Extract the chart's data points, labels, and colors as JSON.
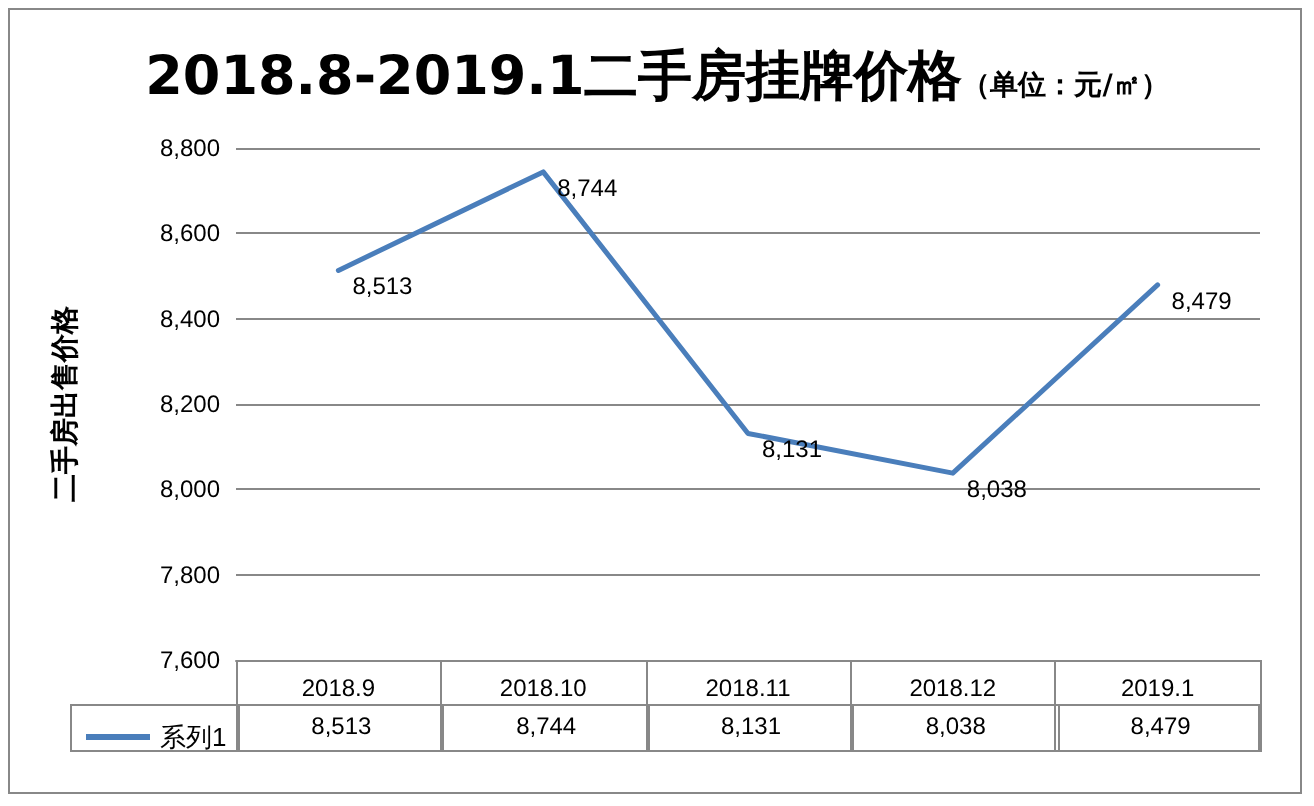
{
  "chart_data": {
    "type": "line",
    "title": "2018.8-2019.1二手房挂牌价格",
    "subtitle": "（单位：元/㎡）",
    "ylabel": "二手房出售价格",
    "categories": [
      "2018.9",
      "2018.10",
      "2018.11",
      "2018.12",
      "2019.1"
    ],
    "series": [
      {
        "name": "系列1",
        "color": "#4a7ebb",
        "values": [
          8513,
          8744,
          8131,
          8038,
          8479
        ],
        "value_labels": [
          "8,513",
          "8,744",
          "8,131",
          "8,038",
          "8,479"
        ]
      }
    ],
    "ylim": [
      7600,
      8800
    ],
    "yticks": [
      {
        "value": 7600,
        "label": "7,600"
      },
      {
        "value": 7800,
        "label": "7,800"
      },
      {
        "value": 8000,
        "label": "8,000"
      },
      {
        "value": 8200,
        "label": "8,200"
      },
      {
        "value": 8400,
        "label": "8,400"
      },
      {
        "value": 8600,
        "label": "8,600"
      },
      {
        "value": 8800,
        "label": "8,800"
      }
    ],
    "grid": "y",
    "legend": "bottom",
    "marker": "none",
    "line_style": "solid"
  }
}
